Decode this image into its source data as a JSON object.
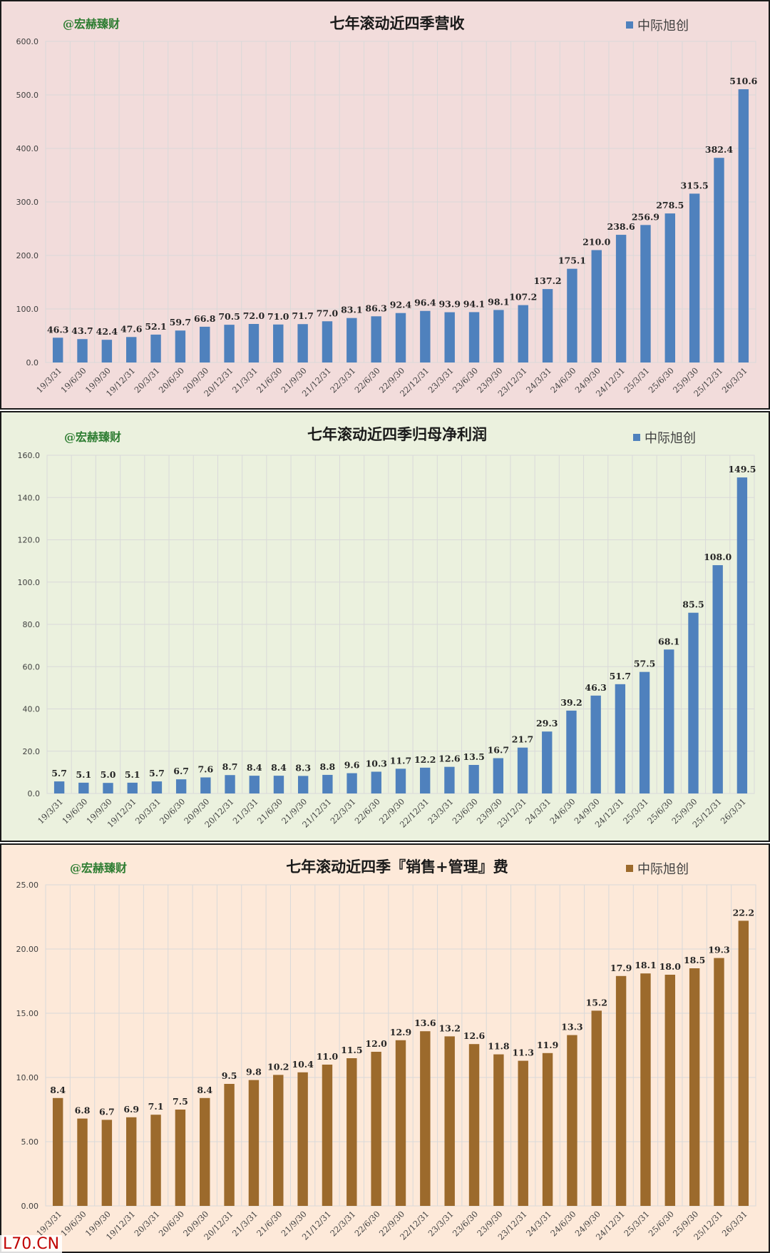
{
  "watermark": "L70.CN",
  "chart_data": [
    {
      "type": "bar",
      "title": "七年滚动近四季营收",
      "brand": "@宏赫臻财",
      "legend": "中际旭创",
      "legend_position": "top-right",
      "color": "#4f81bd",
      "ylim": [
        0,
        600
      ],
      "yticks": [
        "0.0",
        "100.0",
        "200.0",
        "300.0",
        "400.0",
        "500.0",
        "600.0"
      ],
      "grid": true,
      "categories": [
        "19/3/31",
        "19/6/30",
        "19/9/30",
        "19/12/31",
        "20/3/31",
        "20/6/30",
        "20/9/30",
        "20/12/31",
        "21/3/31",
        "21/6/30",
        "21/9/30",
        "21/12/31",
        "22/3/31",
        "22/6/30",
        "22/9/30",
        "22/12/31",
        "23/3/31",
        "23/6/30",
        "23/9/30",
        "23/12/31",
        "24/3/31",
        "24/6/30",
        "24/9/30",
        "24/12/31",
        "25/3/31",
        "25/6/30",
        "25/9/30",
        "25/12/31",
        "26/3/31"
      ],
      "values": [
        46.3,
        43.7,
        42.4,
        47.6,
        52.1,
        59.7,
        66.8,
        70.5,
        72.0,
        71.0,
        71.7,
        77.0,
        83.1,
        86.3,
        92.4,
        96.4,
        93.9,
        94.1,
        98.1,
        107.2,
        137.2,
        175.1,
        210.0,
        238.6,
        256.9,
        278.5,
        315.5,
        382.4,
        510.6
      ],
      "labels": [
        "46.3",
        "43.7",
        "42.4",
        "47.6",
        "52.1",
        "59.7",
        "66.8",
        "70.5",
        "72.0",
        "71.0",
        "71.7",
        "77.0",
        "83.1",
        "86.3",
        "92.4",
        "96.4",
        "93.9",
        "94.1",
        "98.1",
        "107.2",
        "137.2",
        "175.1",
        "210.0",
        "238.6",
        "256.9",
        "278.5",
        "315.5",
        "382.4",
        "510.6"
      ]
    },
    {
      "type": "bar",
      "title": "七年滚动近四季归母净利润",
      "brand": "@宏赫臻财",
      "legend": "中际旭创",
      "legend_position": "top-right",
      "color": "#4f81bd",
      "ylim": [
        0,
        160
      ],
      "yticks": [
        "0.0",
        "20.0",
        "40.0",
        "60.0",
        "80.0",
        "100.0",
        "120.0",
        "140.0",
        "160.0"
      ],
      "grid": true,
      "categories": [
        "19/3/31",
        "19/6/30",
        "19/9/30",
        "19/12/31",
        "20/3/31",
        "20/6/30",
        "20/9/30",
        "20/12/31",
        "21/3/31",
        "21/6/30",
        "21/9/30",
        "21/12/31",
        "22/3/31",
        "22/6/30",
        "22/9/30",
        "22/12/31",
        "23/3/31",
        "23/6/30",
        "23/9/30",
        "23/12/31",
        "24/3/31",
        "24/6/30",
        "24/9/30",
        "24/12/31",
        "25/3/31",
        "25/6/30",
        "25/9/30",
        "25/12/31",
        "26/3/31"
      ],
      "values": [
        5.7,
        5.1,
        5.0,
        5.1,
        5.7,
        6.7,
        7.6,
        8.7,
        8.4,
        8.4,
        8.3,
        8.8,
        9.6,
        10.3,
        11.7,
        12.2,
        12.6,
        13.5,
        16.7,
        21.7,
        29.3,
        39.2,
        46.3,
        51.7,
        57.5,
        68.1,
        85.5,
        108.0,
        149.5
      ],
      "labels": [
        "5.7",
        "5.1",
        "5.0",
        "5.1",
        "5.7",
        "6.7",
        "7.6",
        "8.7",
        "8.4",
        "8.4",
        "8.3",
        "8.8",
        "9.6",
        "10.3",
        "11.7",
        "12.2",
        "12.6",
        "13.5",
        "16.7",
        "21.7",
        "29.3",
        "39.2",
        "46.3",
        "51.7",
        "57.5",
        "68.1",
        "85.5",
        "108.0",
        "149.5"
      ]
    },
    {
      "type": "bar",
      "title": "七年滚动近四季『销售+管理』费",
      "brand": "@宏赫臻财",
      "legend": "中际旭创",
      "legend_position": "top-right",
      "color": "#9c6a2c",
      "ylim": [
        0,
        25
      ],
      "yticks": [
        "0.00",
        "5.00",
        "10.00",
        "15.00",
        "20.00",
        "25.00"
      ],
      "grid": true,
      "categories": [
        "19/3/31",
        "19/6/30",
        "19/9/30",
        "19/12/31",
        "20/3/31",
        "20/6/30",
        "20/9/30",
        "20/12/31",
        "21/3/31",
        "21/6/30",
        "21/9/30",
        "21/12/31",
        "22/3/31",
        "22/6/30",
        "22/9/30",
        "22/12/31",
        "23/3/31",
        "23/6/30",
        "23/9/30",
        "23/12/31",
        "24/3/31",
        "24/6/30",
        "24/9/30",
        "24/12/31",
        "25/3/31",
        "25/6/30",
        "25/9/30",
        "25/12/31",
        "26/3/31"
      ],
      "values": [
        8.4,
        6.8,
        6.7,
        6.9,
        7.1,
        7.5,
        8.4,
        9.5,
        9.8,
        10.2,
        10.4,
        11.0,
        11.5,
        12.0,
        12.9,
        13.6,
        13.2,
        12.6,
        11.8,
        11.3,
        11.9,
        13.3,
        15.2,
        17.9,
        18.1,
        18.0,
        18.5,
        19.3,
        22.2
      ],
      "labels": [
        "8.4",
        "6.8",
        "6.7",
        "6.9",
        "7.1",
        "7.5",
        "8.4",
        "9.5",
        "9.8",
        "10.2",
        "10.4",
        "11.0",
        "11.5",
        "12.0",
        "12.9",
        "13.6",
        "13.2",
        "12.6",
        "11.8",
        "11.3",
        "11.9",
        "13.3",
        "15.2",
        "17.9",
        "18.1",
        "18.0",
        "18.5",
        "19.3",
        "22.2"
      ]
    }
  ]
}
